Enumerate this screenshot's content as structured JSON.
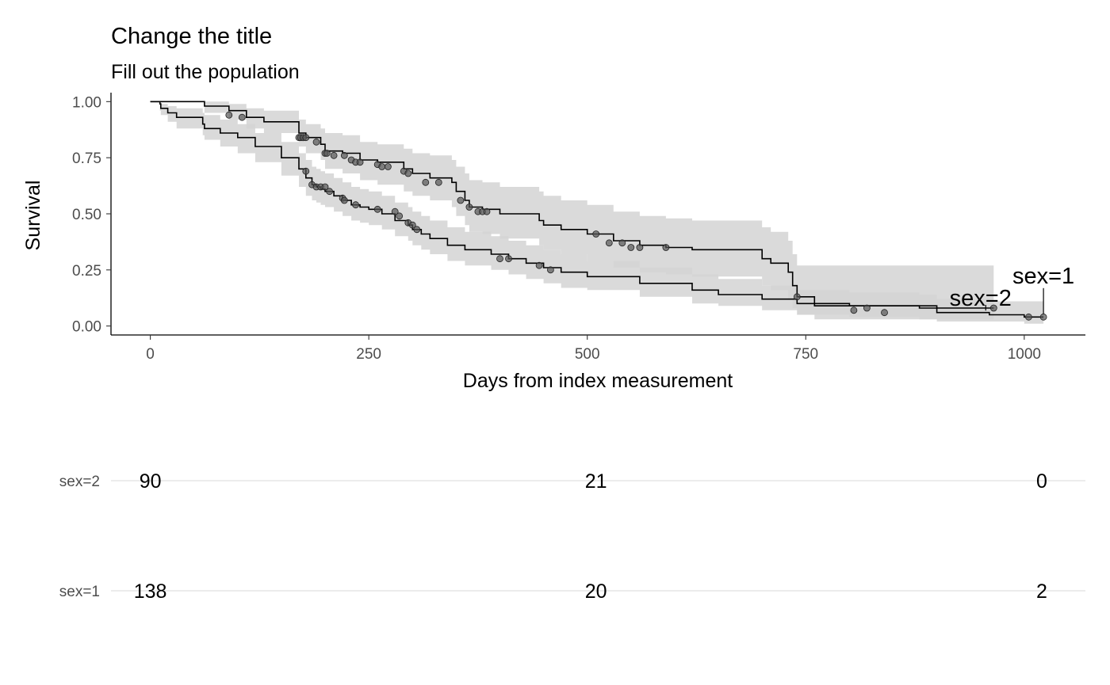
{
  "chart_data": [
    {
      "type": "line",
      "title": "Change the title",
      "subtitle": "Fill out the population",
      "xlabel": "Days from index measurement",
      "ylabel": "Survival",
      "xlim": [
        -45,
        1070
      ],
      "ylim": [
        -0.04,
        1.04
      ],
      "x_ticks": [
        0,
        250,
        500,
        750,
        1000
      ],
      "x_tick_labels": [
        "0",
        "250",
        "500",
        "750",
        "1000"
      ],
      "y_ticks": [
        0,
        0.25,
        0.5,
        0.75,
        1.0
      ],
      "y_tick_labels": [
        "0.00",
        "0.25",
        "0.50",
        "0.75",
        "1.00"
      ],
      "grid": false,
      "legend": "none",
      "colors": {
        "line": "#000000",
        "band": "#d3d3d3",
        "band_overlap": "#b0b0b0",
        "censor": "#555555"
      },
      "series": [
        {
          "name": "sex=1",
          "x": [
            0,
            11,
            12,
            20,
            30,
            60,
            62,
            80,
            100,
            120,
            150,
            170,
            178,
            185,
            190,
            195,
            200,
            210,
            220,
            230,
            240,
            250,
            265,
            280,
            295,
            300,
            310,
            320,
            340,
            360,
            390,
            410,
            430,
            450,
            470,
            500,
            560,
            620,
            650,
            700,
            740,
            800,
            880,
            900,
            960,
            1000,
            1022
          ],
          "survival": [
            1.0,
            0.99,
            0.97,
            0.95,
            0.93,
            0.9,
            0.88,
            0.86,
            0.84,
            0.8,
            0.75,
            0.7,
            0.66,
            0.63,
            0.62,
            0.61,
            0.6,
            0.58,
            0.56,
            0.54,
            0.53,
            0.52,
            0.5,
            0.47,
            0.45,
            0.43,
            0.41,
            0.39,
            0.36,
            0.34,
            0.32,
            0.3,
            0.28,
            0.26,
            0.24,
            0.22,
            0.19,
            0.16,
            0.14,
            0.12,
            0.1,
            0.09,
            0.08,
            0.06,
            0.05,
            0.04,
            0.04
          ],
          "lower": [
            1.0,
            0.96,
            0.94,
            0.91,
            0.88,
            0.85,
            0.83,
            0.8,
            0.77,
            0.73,
            0.67,
            0.62,
            0.58,
            0.56,
            0.55,
            0.54,
            0.53,
            0.51,
            0.49,
            0.47,
            0.46,
            0.45,
            0.43,
            0.4,
            0.38,
            0.36,
            0.34,
            0.32,
            0.29,
            0.27,
            0.25,
            0.23,
            0.21,
            0.19,
            0.17,
            0.16,
            0.13,
            0.1,
            0.09,
            0.07,
            0.05,
            0.04,
            0.03,
            0.02,
            0.02,
            0.01,
            0.01
          ],
          "upper": [
            1.0,
            1.0,
            0.99,
            0.98,
            0.97,
            0.95,
            0.94,
            0.92,
            0.9,
            0.86,
            0.82,
            0.77,
            0.74,
            0.71,
            0.7,
            0.69,
            0.68,
            0.66,
            0.64,
            0.62,
            0.61,
            0.6,
            0.58,
            0.55,
            0.53,
            0.51,
            0.49,
            0.47,
            0.44,
            0.42,
            0.4,
            0.38,
            0.36,
            0.34,
            0.32,
            0.29,
            0.26,
            0.23,
            0.21,
            0.18,
            0.16,
            0.15,
            0.14,
            0.12,
            0.11,
            0.11,
            0.11
          ],
          "censored": [
            [
              178,
              0.69
            ],
            [
              185,
              0.63
            ],
            [
              190,
              0.62
            ],
            [
              195,
              0.62
            ],
            [
              200,
              0.62
            ],
            [
              205,
              0.6
            ],
            [
              220,
              0.57
            ],
            [
              222,
              0.56
            ],
            [
              235,
              0.54
            ],
            [
              260,
              0.52
            ],
            [
              280,
              0.51
            ],
            [
              285,
              0.49
            ],
            [
              295,
              0.46
            ],
            [
              300,
              0.45
            ],
            [
              305,
              0.43
            ],
            [
              400,
              0.3
            ],
            [
              410,
              0.3
            ],
            [
              445,
              0.27
            ],
            [
              458,
              0.25
            ],
            [
              1005,
              0.04
            ],
            [
              1022,
              0.04
            ]
          ],
          "label": "sex=1",
          "label_x": 1022,
          "label_y": 0.19
        },
        {
          "name": "sex=2",
          "x": [
            0,
            60,
            62,
            90,
            110,
            130,
            170,
            178,
            195,
            200,
            220,
            240,
            260,
            290,
            300,
            320,
            345,
            350,
            360,
            365,
            380,
            400,
            445,
            450,
            470,
            500,
            530,
            560,
            590,
            620,
            700,
            710,
            730,
            735,
            740,
            760,
            820,
            900,
            965
          ],
          "survival": [
            1.0,
            1.0,
            0.98,
            0.96,
            0.93,
            0.91,
            0.86,
            0.84,
            0.81,
            0.78,
            0.77,
            0.74,
            0.73,
            0.7,
            0.68,
            0.66,
            0.64,
            0.6,
            0.56,
            0.53,
            0.52,
            0.5,
            0.47,
            0.45,
            0.43,
            0.41,
            0.38,
            0.36,
            0.35,
            0.34,
            0.3,
            0.28,
            0.24,
            0.18,
            0.13,
            0.09,
            0.09,
            0.08,
            0.08
          ],
          "lower": [
            1.0,
            1.0,
            0.95,
            0.92,
            0.88,
            0.86,
            0.8,
            0.77,
            0.74,
            0.7,
            0.68,
            0.65,
            0.63,
            0.6,
            0.58,
            0.56,
            0.53,
            0.49,
            0.45,
            0.42,
            0.41,
            0.39,
            0.36,
            0.34,
            0.32,
            0.29,
            0.26,
            0.24,
            0.23,
            0.22,
            0.18,
            0.16,
            0.12,
            0.08,
            0.05,
            0.03,
            0.03,
            0.03,
            0.03
          ],
          "upper": [
            1.0,
            1.0,
            1.0,
            0.99,
            0.97,
            0.96,
            0.92,
            0.9,
            0.88,
            0.86,
            0.85,
            0.82,
            0.81,
            0.79,
            0.77,
            0.76,
            0.74,
            0.71,
            0.68,
            0.65,
            0.64,
            0.62,
            0.6,
            0.58,
            0.56,
            0.54,
            0.51,
            0.49,
            0.48,
            0.47,
            0.44,
            0.42,
            0.38,
            0.32,
            0.27,
            0.27,
            0.27,
            0.27,
            0.27
          ],
          "censored": [
            [
              90,
              0.94
            ],
            [
              105,
              0.93
            ],
            [
              170,
              0.84
            ],
            [
              172,
              0.84
            ],
            [
              175,
              0.84
            ],
            [
              178,
              0.84
            ],
            [
              190,
              0.82
            ],
            [
              200,
              0.77
            ],
            [
              202,
              0.77
            ],
            [
              210,
              0.76
            ],
            [
              222,
              0.76
            ],
            [
              230,
              0.74
            ],
            [
              235,
              0.73
            ],
            [
              240,
              0.73
            ],
            [
              260,
              0.72
            ],
            [
              265,
              0.71
            ],
            [
              272,
              0.71
            ],
            [
              290,
              0.69
            ],
            [
              295,
              0.68
            ],
            [
              315,
              0.64
            ],
            [
              330,
              0.64
            ],
            [
              355,
              0.56
            ],
            [
              365,
              0.53
            ],
            [
              375,
              0.51
            ],
            [
              380,
              0.51
            ],
            [
              385,
              0.51
            ],
            [
              510,
              0.41
            ],
            [
              525,
              0.37
            ],
            [
              540,
              0.37
            ],
            [
              550,
              0.35
            ],
            [
              560,
              0.35
            ],
            [
              590,
              0.35
            ],
            [
              740,
              0.13
            ],
            [
              805,
              0.07
            ],
            [
              820,
              0.08
            ],
            [
              840,
              0.06
            ],
            [
              965,
              0.08
            ]
          ],
          "label": "sex=2",
          "label_x": 950,
          "label_y": 0.09
        }
      ]
    },
    {
      "type": "table",
      "title": "",
      "rows": [
        {
          "label": "sex=2",
          "times": [
            0,
            510,
            1020
          ],
          "values": [
            "90",
            "21",
            "0"
          ]
        },
        {
          "label": "sex=1",
          "times": [
            0,
            510,
            1020
          ],
          "values": [
            "138",
            "20",
            "2"
          ]
        }
      ]
    }
  ]
}
